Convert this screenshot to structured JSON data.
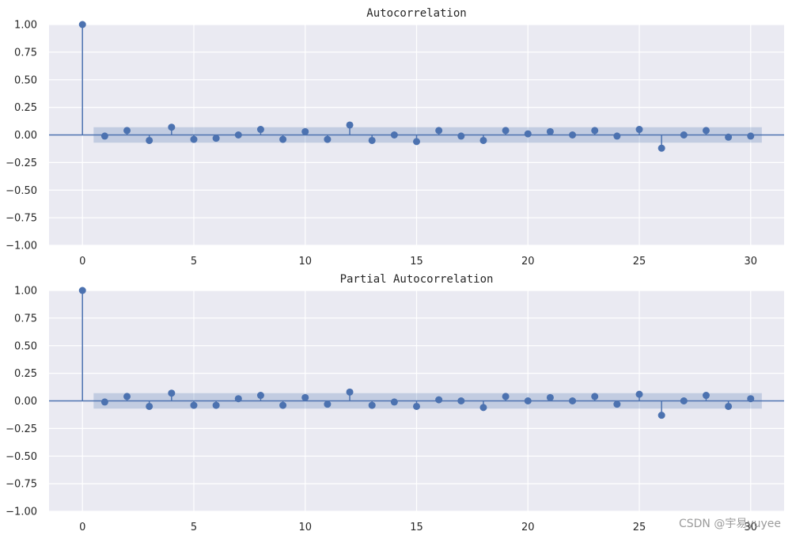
{
  "colors": {
    "figure_bg": "#ffffff",
    "axes_bg": "#eaeaf2",
    "grid": "#ffffff",
    "series": "#4c72b0",
    "band_fill": "#4c72b0",
    "text": "#262626"
  },
  "watermark": "CSDN @宇易yuyee",
  "chart_data": [
    {
      "type": "stem",
      "title": "Autocorrelation",
      "xlabel": "",
      "ylabel": "",
      "xlim": [
        -1.5,
        31.5
      ],
      "ylim": [
        -1,
        1
      ],
      "xticks": [
        0,
        5,
        10,
        15,
        20,
        25,
        30
      ],
      "yticks": [
        1.0,
        0.75,
        0.5,
        0.25,
        0.0,
        -0.25,
        -0.5,
        -0.75,
        -1.0
      ],
      "ytick_labels": [
        "1.00",
        "0.75",
        "0.50",
        "0.25",
        "0.00",
        "−0.25",
        "−0.50",
        "−0.75",
        "−1.00"
      ],
      "grid": true,
      "confidence_band": {
        "x": [
          0.5,
          30.5
        ],
        "upper": 0.07,
        "lower": -0.07
      },
      "lags": [
        0,
        1,
        2,
        3,
        4,
        5,
        6,
        7,
        8,
        9,
        10,
        11,
        12,
        13,
        14,
        15,
        16,
        17,
        18,
        19,
        20,
        21,
        22,
        23,
        24,
        25,
        26,
        27,
        28,
        29,
        30
      ],
      "values": [
        1.0,
        -0.01,
        0.04,
        -0.05,
        0.07,
        -0.04,
        -0.03,
        0.0,
        0.05,
        -0.04,
        0.03,
        -0.04,
        0.09,
        -0.05,
        0.0,
        -0.06,
        0.04,
        -0.01,
        -0.05,
        0.04,
        0.01,
        0.03,
        0.0,
        0.04,
        -0.01,
        0.05,
        -0.12,
        0.0,
        0.04,
        -0.02,
        -0.01
      ]
    },
    {
      "type": "stem",
      "title": "Partial Autocorrelation",
      "xlabel": "",
      "ylabel": "",
      "xlim": [
        -1.5,
        31.5
      ],
      "ylim": [
        -1,
        1
      ],
      "xticks": [
        0,
        5,
        10,
        15,
        20,
        25,
        30
      ],
      "yticks": [
        1.0,
        0.75,
        0.5,
        0.25,
        0.0,
        -0.25,
        -0.5,
        -0.75,
        -1.0
      ],
      "ytick_labels": [
        "1.00",
        "0.75",
        "0.50",
        "0.25",
        "0.00",
        "−0.25",
        "−0.50",
        "−0.75",
        "−1.00"
      ],
      "grid": true,
      "confidence_band": {
        "x": [
          0.5,
          30.5
        ],
        "upper": 0.07,
        "lower": -0.07
      },
      "lags": [
        0,
        1,
        2,
        3,
        4,
        5,
        6,
        7,
        8,
        9,
        10,
        11,
        12,
        13,
        14,
        15,
        16,
        17,
        18,
        19,
        20,
        21,
        22,
        23,
        24,
        25,
        26,
        27,
        28,
        29,
        30
      ],
      "values": [
        1.0,
        -0.01,
        0.04,
        -0.05,
        0.07,
        -0.04,
        -0.04,
        0.02,
        0.05,
        -0.04,
        0.03,
        -0.03,
        0.08,
        -0.04,
        -0.01,
        -0.05,
        0.01,
        0.0,
        -0.06,
        0.04,
        0.0,
        0.03,
        0.0,
        0.04,
        -0.03,
        0.06,
        -0.13,
        0.0,
        0.05,
        -0.05,
        0.02
      ]
    }
  ]
}
